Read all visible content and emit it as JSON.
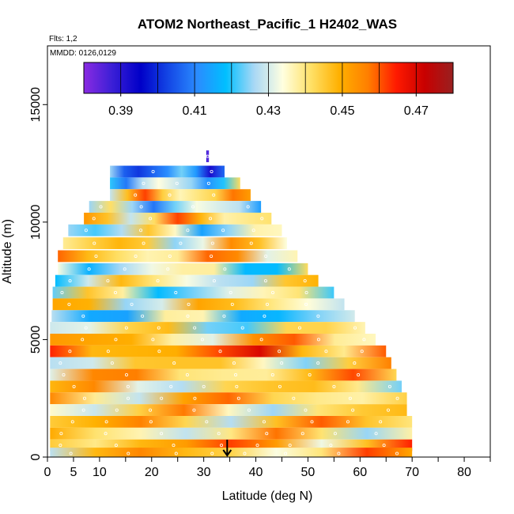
{
  "chart_data": {
    "type": "heatmap",
    "title": "ATOM2 Northeast_Pacific_1 H2402_WAS",
    "flights_label": "Flts: 1,2",
    "dates_label": "MMDD: 0126,0129",
    "xlabel": "Latitude (deg N)",
    "ylabel": "Altitude (m)",
    "xlim": [
      0,
      85
    ],
    "ylim": [
      0,
      17500
    ],
    "x_ticks": [
      0,
      5,
      10,
      20,
      30,
      40,
      50,
      60,
      70,
      80
    ],
    "x_minor_ticks": [
      15,
      25,
      35,
      45,
      55,
      65,
      75,
      85
    ],
    "y_ticks": [
      0,
      5000,
      10000,
      15000
    ],
    "colorbar": {
      "range": [
        0.38,
        0.48
      ],
      "tick_values": [
        0.39,
        0.41,
        0.43,
        0.45,
        0.47
      ],
      "tick_labels": [
        "0.39",
        "0.41",
        "0.43",
        "0.45",
        "0.47"
      ],
      "colors": [
        "#8a2be2",
        "#3b1fd6",
        "#0000c8",
        "#1448e6",
        "#2a8cff",
        "#00bfff",
        "#a9d8f5",
        "#ffffe0",
        "#ffe066",
        "#ffb000",
        "#ff7f00",
        "#ff1a00",
        "#c80000",
        "#992020"
      ]
    },
    "marker": {
      "latitude": 34.5,
      "label": "arrow"
    },
    "bands": [
      {
        "alt": 12800,
        "lat": [
          30.5,
          31
        ],
        "value": 0.385
      },
      {
        "alt": 12150,
        "lat": [
          12,
          34
        ],
        "value": 0.41
      },
      {
        "alt": 11650,
        "lat": [
          12,
          37
        ],
        "value": 0.425
      },
      {
        "alt": 11150,
        "lat": [
          12,
          39
        ],
        "value": 0.445
      },
      {
        "alt": 10650,
        "lat": [
          8,
          41
        ],
        "value": 0.425
      },
      {
        "alt": 10150,
        "lat": [
          7,
          43
        ],
        "value": 0.445
      },
      {
        "alt": 9650,
        "lat": [
          4,
          45
        ],
        "value": 0.43
      },
      {
        "alt": 9100,
        "lat": [
          3,
          46
        ],
        "value": 0.44
      },
      {
        "alt": 8550,
        "lat": [
          2,
          48
        ],
        "value": 0.445
      },
      {
        "alt": 8000,
        "lat": [
          2,
          50
        ],
        "value": 0.43
      },
      {
        "alt": 7500,
        "lat": [
          1.5,
          52
        ],
        "value": 0.435
      },
      {
        "alt": 7000,
        "lat": [
          1,
          55
        ],
        "value": 0.43
      },
      {
        "alt": 6500,
        "lat": [
          1,
          57
        ],
        "value": 0.44
      },
      {
        "alt": 6000,
        "lat": [
          0.8,
          59
        ],
        "value": 0.425
      },
      {
        "alt": 5500,
        "lat": [
          0.5,
          61
        ],
        "value": 0.435
      },
      {
        "alt": 5000,
        "lat": [
          0.5,
          63
        ],
        "value": 0.445
      },
      {
        "alt": 4500,
        "lat": [
          0.5,
          65
        ],
        "value": 0.455
      },
      {
        "alt": 4000,
        "lat": [
          0.5,
          66
        ],
        "value": 0.44
      },
      {
        "alt": 3500,
        "lat": [
          0.5,
          67
        ],
        "value": 0.445
      },
      {
        "alt": 3000,
        "lat": [
          0.5,
          68
        ],
        "value": 0.44
      },
      {
        "alt": 2500,
        "lat": [
          0.5,
          69
        ],
        "value": 0.445
      },
      {
        "alt": 2000,
        "lat": [
          0.5,
          69
        ],
        "value": 0.44
      },
      {
        "alt": 1500,
        "lat": [
          0.5,
          70
        ],
        "value": 0.445
      },
      {
        "alt": 1000,
        "lat": [
          0.5,
          70
        ],
        "value": 0.44
      },
      {
        "alt": 500,
        "lat": [
          0.5,
          70
        ],
        "value": 0.45
      },
      {
        "alt": 150,
        "lat": [
          0.5,
          70
        ],
        "value": 0.445
      }
    ]
  }
}
